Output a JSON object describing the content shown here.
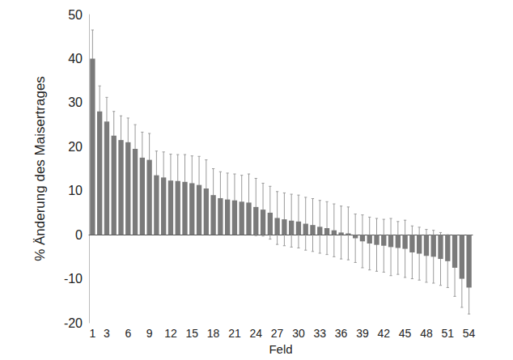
{
  "chart_data": {
    "type": "bar",
    "ylabel": "% Änderung des Maisertrages",
    "xlabel": "Feld",
    "categories": [
      "1",
      null,
      "3",
      null,
      null,
      "6",
      null,
      null,
      "9",
      null,
      null,
      "12",
      null,
      null,
      "15",
      null,
      null,
      "18",
      null,
      null,
      "21",
      null,
      null,
      "24",
      null,
      null,
      "27",
      null,
      null,
      "30",
      null,
      null,
      "33",
      null,
      null,
      "36",
      null,
      null,
      "39",
      null,
      null,
      "42",
      null,
      null,
      "45",
      null,
      null,
      "48",
      null,
      null,
      "51",
      null,
      null,
      "54"
    ],
    "values": [
      40,
      28,
      25.7,
      22.5,
      21.5,
      21,
      19.5,
      17.5,
      17,
      13.5,
      13,
      12.3,
      12.2,
      12,
      11.7,
      11.3,
      10.5,
      9,
      8.3,
      8,
      7.8,
      7.5,
      7.3,
      6.3,
      5.7,
      5,
      3.8,
      3.5,
      3.2,
      3,
      2.5,
      2.2,
      1.8,
      1.5,
      1,
      0.5,
      0.3,
      -0.8,
      -1.5,
      -2,
      -2.3,
      -2.5,
      -2.8,
      -3,
      -3.2,
      -4,
      -4.3,
      -4.8,
      -5,
      -5.5,
      -6,
      -7.5,
      -10,
      -12
    ],
    "errors": [
      6.5,
      5.8,
      5.5,
      5.5,
      5.5,
      5.5,
      5.5,
      5.8,
      6,
      5.5,
      5.8,
      6,
      6,
      6.2,
      6.2,
      6.5,
      6.5,
      6,
      6,
      6,
      6,
      6,
      6.5,
      6.5,
      6,
      6,
      6,
      6,
      6,
      6,
      6,
      6,
      6,
      6,
      6,
      6,
      6,
      5.5,
      6,
      6,
      6,
      6,
      6.5,
      6,
      6.5,
      6,
      6,
      6,
      6,
      6,
      6,
      6.5,
      6.5,
      6
    ],
    "color": "#7a7a7a",
    "ylim": [
      -20,
      50
    ],
    "yticks": [
      -20,
      -10,
      0,
      10,
      20,
      30,
      40,
      50
    ],
    "grid": false
  }
}
